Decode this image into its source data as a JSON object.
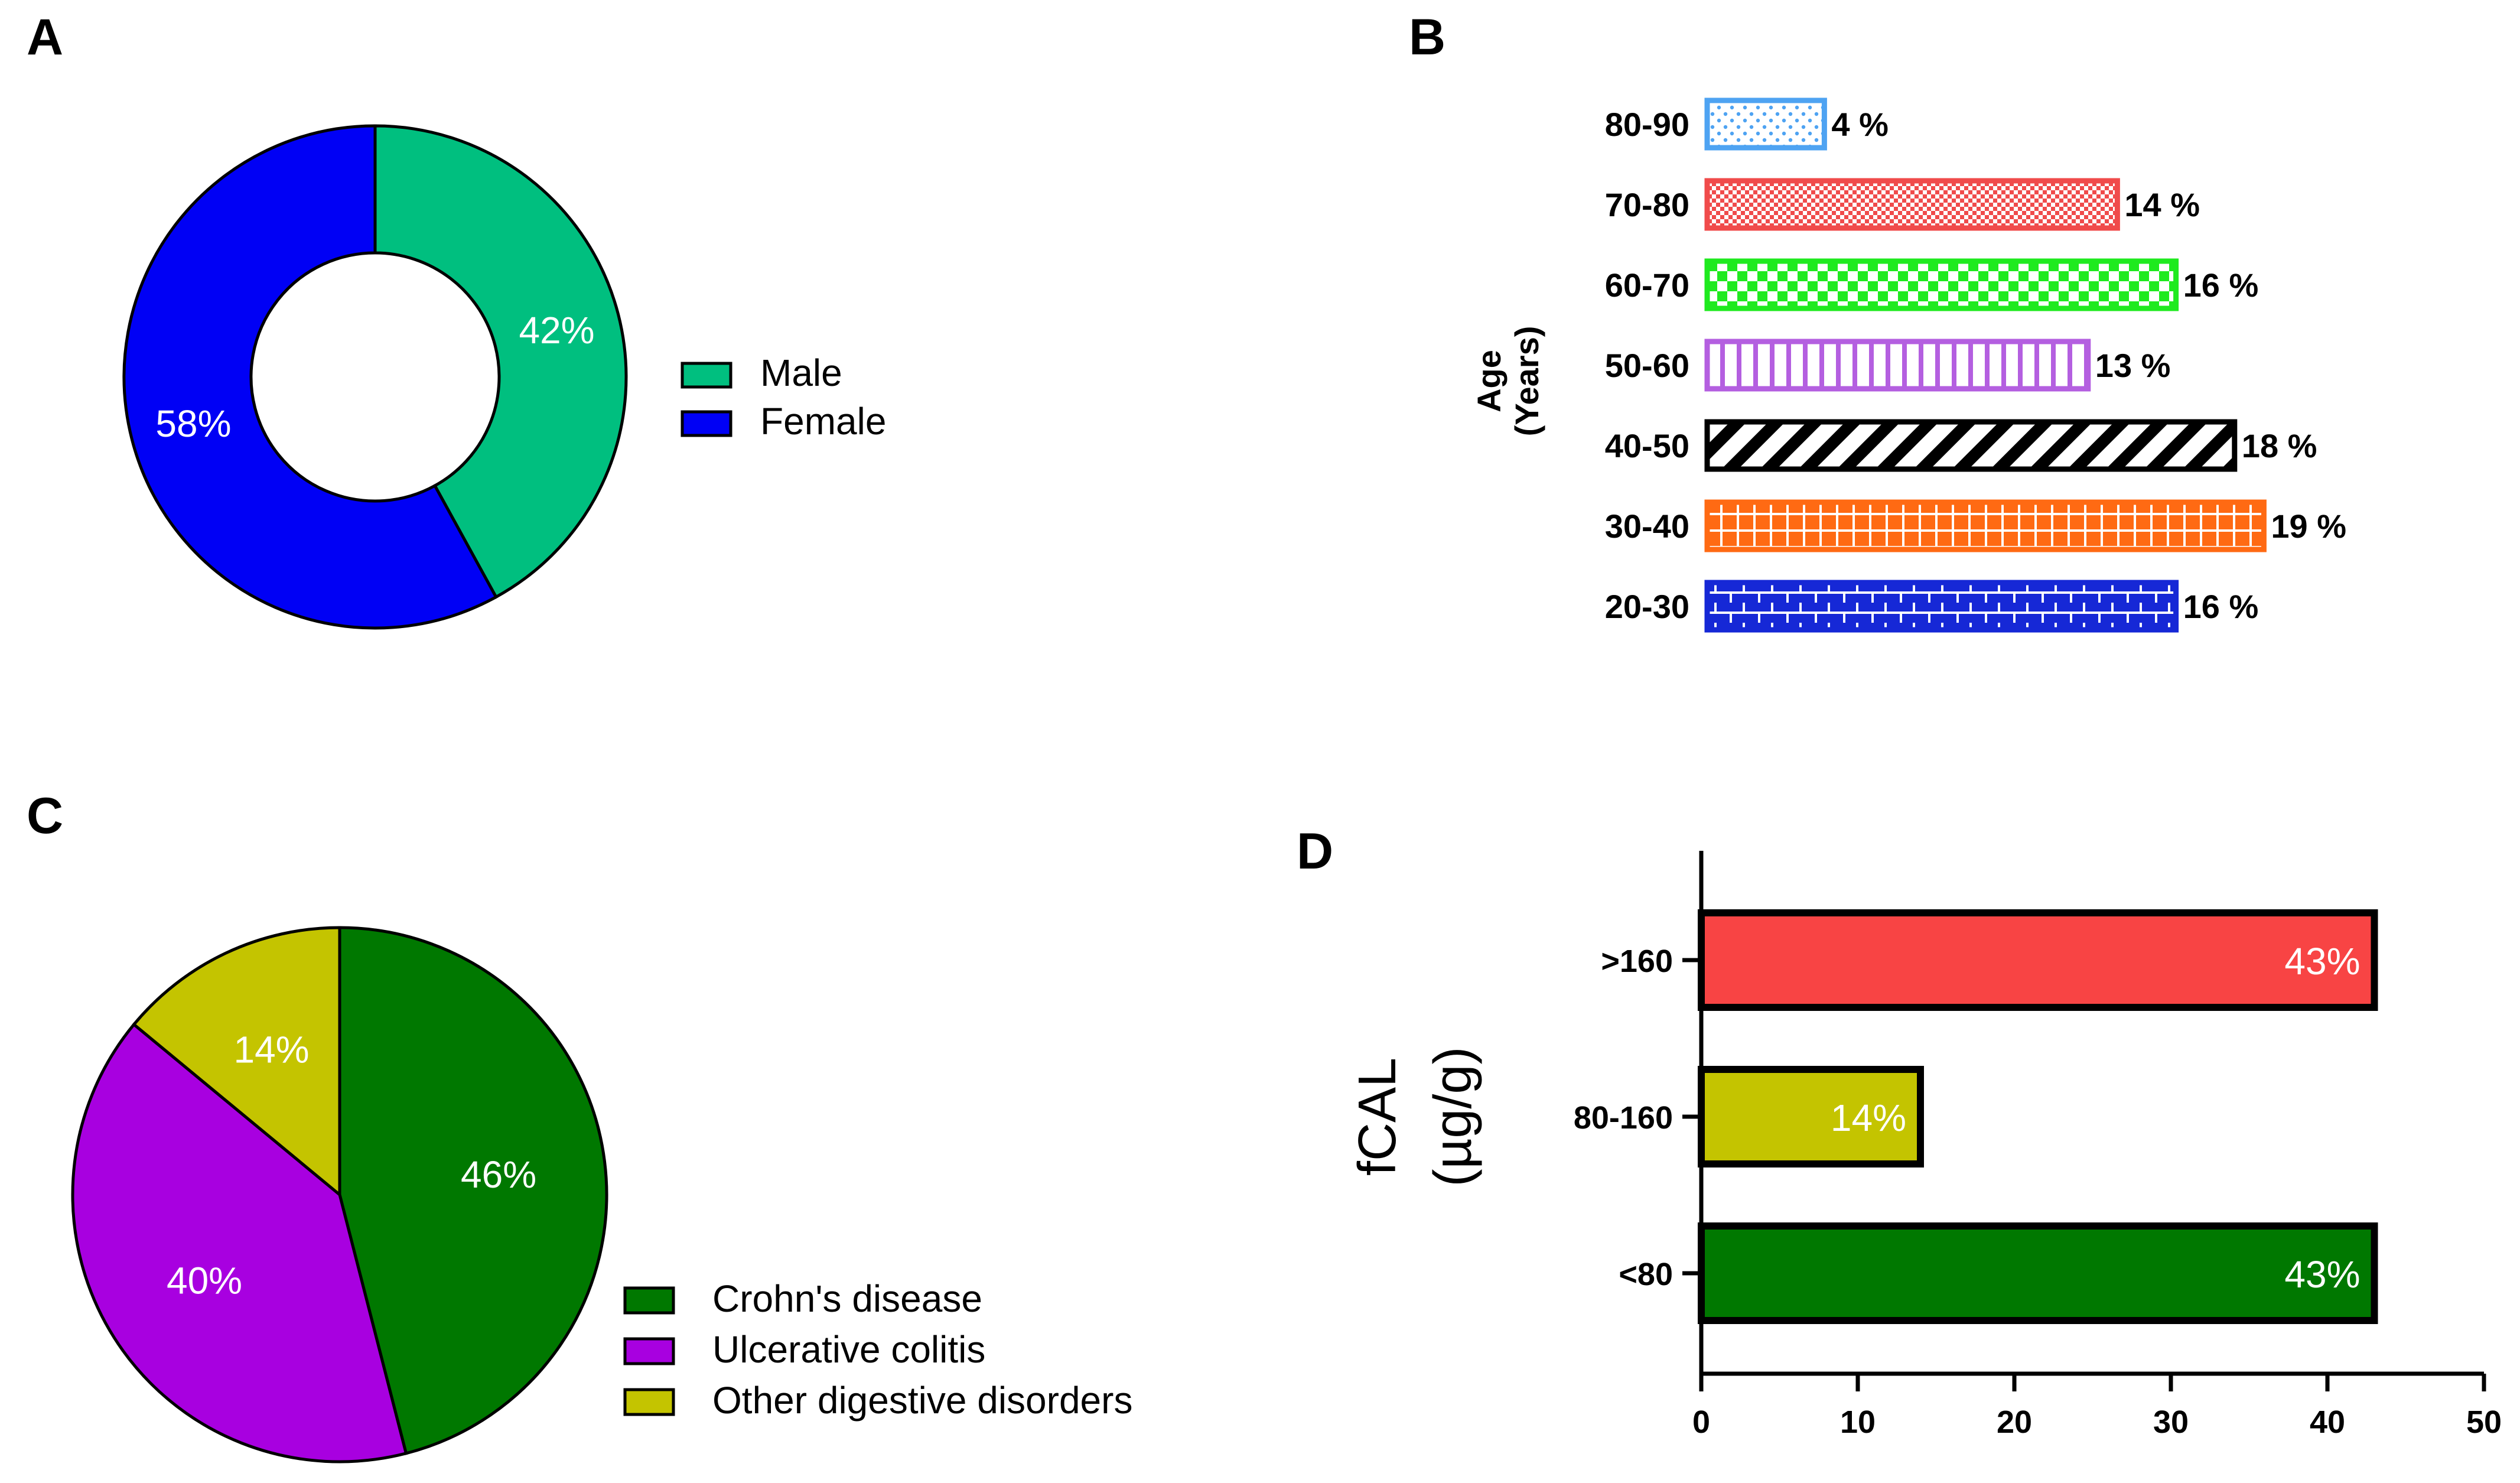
{
  "panels": {
    "A": "A",
    "B": "B",
    "C": "C",
    "D": "D"
  },
  "chart_data": [
    {
      "id": "A",
      "type": "pie",
      "donut": true,
      "title": "",
      "slices": [
        {
          "label": "Male",
          "value": 42,
          "display": "42%",
          "color": "#00BF7F"
        },
        {
          "label": "Female",
          "value": 58,
          "display": "58%",
          "color": "#0000F5"
        }
      ],
      "legend": [
        "Male",
        "Female"
      ],
      "legend_position": "right"
    },
    {
      "id": "B",
      "type": "bar",
      "orientation": "horizontal",
      "title": "",
      "ylabel": "Age",
      "ylabel2": "(Years)",
      "categories": [
        "80-90",
        "70-80",
        "60-70",
        "50-60",
        "40-50",
        "30-40",
        "20-30"
      ],
      "values": [
        4,
        14,
        16,
        13,
        18,
        19,
        16
      ],
      "value_labels": [
        "4 %",
        "14 %",
        "16 %",
        "13 %",
        "18 %",
        "19 %",
        "16 %"
      ],
      "colors": [
        "#4EA3F2",
        "#F04B4B",
        "#1FEA1F",
        "#B45FE0",
        "#000000",
        "#FF6A13",
        "#1628D6"
      ],
      "patterns": [
        "dots",
        "fine-check",
        "checker",
        "vertical",
        "diagonal",
        "grid",
        "brick"
      ],
      "xlim": [
        0,
        19
      ]
    },
    {
      "id": "C",
      "type": "pie",
      "title": "",
      "slices": [
        {
          "label": "Crohn's disease",
          "value": 46,
          "display": "46%",
          "color": "#007800"
        },
        {
          "label": "Ulcerative colitis",
          "value": 40,
          "display": "40%",
          "color": "#A800E0"
        },
        {
          "label": "Other digestive disorders",
          "value": 14,
          "display": "14%",
          "color": "#C4C400"
        }
      ],
      "legend": [
        "Crohn's disease",
        "Ulcerative colitis",
        "Other digestive disorders"
      ],
      "legend_position": "bottom-right"
    },
    {
      "id": "D",
      "type": "bar",
      "orientation": "horizontal",
      "title": "",
      "ylabel": "fCAL",
      "ylabel2": "(µg/g)",
      "xlabel": "",
      "categories": [
        ">160",
        "80-160",
        "<80"
      ],
      "values": [
        43,
        14,
        43
      ],
      "value_labels": [
        "43%",
        "14%",
        "43%"
      ],
      "colors": [
        "#F84444",
        "#C4C400",
        "#007800"
      ],
      "xlim": [
        0,
        50
      ],
      "xticks": [
        0,
        10,
        20,
        30,
        40,
        50
      ]
    }
  ]
}
